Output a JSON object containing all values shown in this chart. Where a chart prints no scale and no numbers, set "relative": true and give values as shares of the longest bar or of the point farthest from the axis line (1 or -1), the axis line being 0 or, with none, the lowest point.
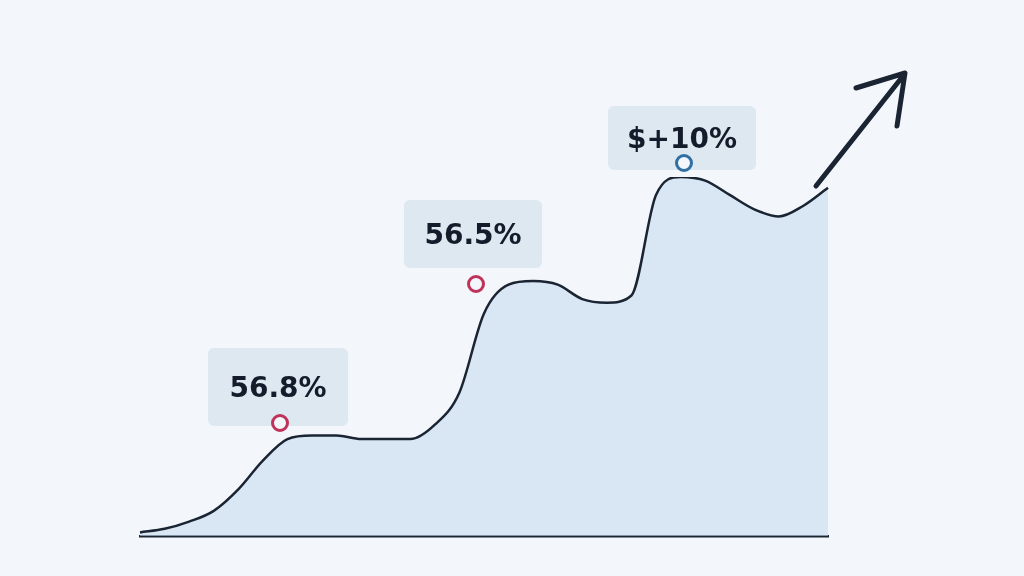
{
  "chart_data": {
    "type": "area",
    "relative": true,
    "categories": [
      null,
      null,
      null,
      null,
      null,
      null,
      null,
      null,
      null,
      null,
      null,
      null,
      null,
      null,
      null,
      null,
      null,
      null,
      null,
      null,
      null,
      null,
      null,
      null,
      null,
      null,
      null,
      null,
      null
    ],
    "series": [
      {
        "color": "#1a2433",
        "values": [
          0.01,
          0.02,
          0.04,
          0.07,
          0.13,
          0.21,
          0.27,
          0.28,
          0.28,
          0.27,
          0.27,
          0.27,
          0.31,
          0.4,
          0.62,
          0.7,
          0.71,
          0.7,
          0.66,
          0.65,
          0.67,
          0.95,
          1.0,
          0.99,
          0.95,
          0.91,
          0.89,
          0.92,
          0.97
        ]
      }
    ],
    "annotations": [
      "56.8%",
      "56.5%",
      "$+10%"
    ],
    "grid": false,
    "legend": false
  }
}
